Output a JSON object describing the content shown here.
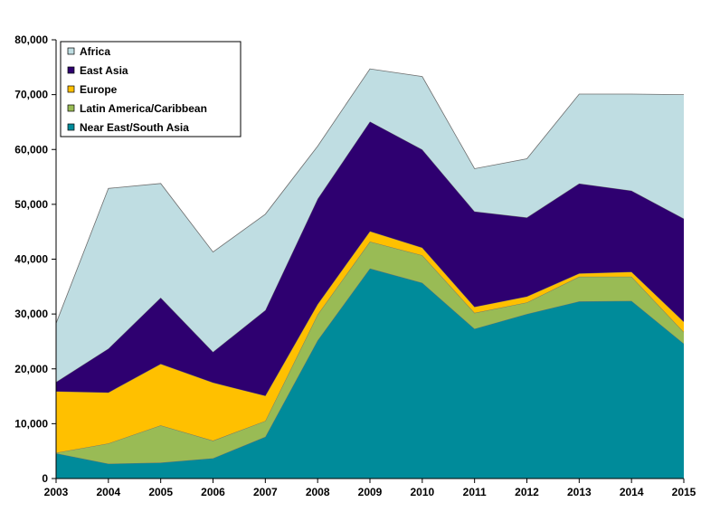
{
  "chart_data": {
    "type": "area",
    "stacked": true,
    "x": [
      "2003",
      "2004",
      "2005",
      "2006",
      "2007",
      "2008",
      "2009",
      "2010",
      "2011",
      "2012",
      "2013",
      "2014",
      "2015"
    ],
    "ylim": [
      0,
      80000
    ],
    "yticks": [
      0,
      10000,
      20000,
      30000,
      40000,
      50000,
      60000,
      70000,
      80000
    ],
    "ytick_labels": [
      "0",
      "10,000",
      "20,000",
      "30,000",
      "40,000",
      "50,000",
      "60,000",
      "70,000",
      "80,000"
    ],
    "grid": false,
    "legend_position": "top-left",
    "series": [
      {
        "name": "Near East/South Asia",
        "color": "#008B9A",
        "values": [
          4600,
          2700,
          2900,
          3700,
          7600,
          25200,
          38300,
          35700,
          27300,
          30000,
          32300,
          32400,
          24600
        ]
      },
      {
        "name": "Latin America/Caribbean",
        "color": "#99BB55",
        "values": [
          100,
          3700,
          6800,
          3200,
          2900,
          4700,
          4900,
          5000,
          2900,
          2100,
          4500,
          4400,
          2100
        ]
      },
      {
        "name": "Europe",
        "color": "#FFC000",
        "values": [
          11200,
          9300,
          11200,
          10600,
          4600,
          1900,
          1900,
          1400,
          1100,
          1100,
          600,
          900,
          1900
        ]
      },
      {
        "name": "East Asia",
        "color": "#2E0070",
        "values": [
          1700,
          8000,
          12100,
          5600,
          15600,
          19200,
          20000,
          17900,
          17400,
          14400,
          16400,
          14800,
          18800
        ]
      },
      {
        "name": "Africa",
        "color": "#BFDDE2",
        "values": [
          10700,
          29200,
          20800,
          18200,
          17500,
          9600,
          9600,
          13300,
          7800,
          10700,
          16300,
          17600,
          22600
        ]
      }
    ],
    "legend_order": [
      "Africa",
      "East Asia",
      "Europe",
      "Latin America/Caribbean",
      "Near East/South Asia"
    ]
  },
  "style": {
    "axis_color": "#000000",
    "outline_color": "#6e6e6e"
  }
}
